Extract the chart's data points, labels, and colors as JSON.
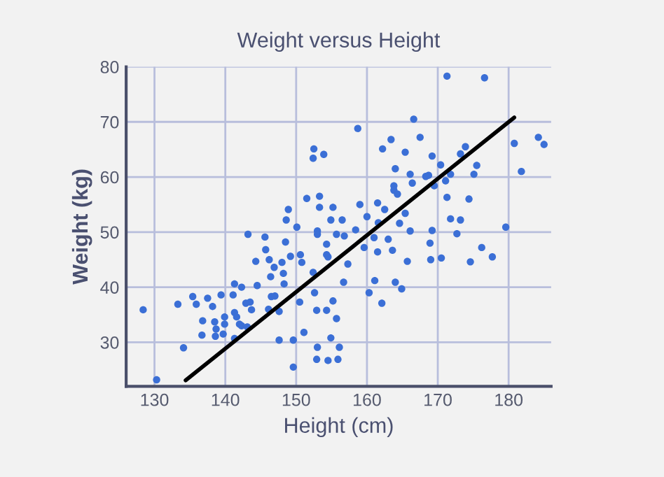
{
  "chart_data": {
    "type": "scatter",
    "title": "Weight versus Height",
    "xlabel": "Height (cm)",
    "ylabel": "Weight (kg)",
    "xlim": [
      126,
      186
    ],
    "ylim": [
      22,
      80
    ],
    "xticks": [
      130,
      140,
      150,
      160,
      170,
      180
    ],
    "yticks": [
      30,
      40,
      50,
      60,
      70,
      80
    ],
    "grid": true,
    "series": [
      {
        "marker": "circle",
        "color": "#3b6fd6",
        "x": [
          128.4,
          130.3,
          134.1,
          133.3,
          135.4,
          135.9,
          137.5,
          138.2,
          136.8,
          136.7,
          138.5,
          138.6,
          139.4,
          138.7,
          139.9,
          139.9,
          139.7,
          141.1,
          141.3,
          141.3,
          141.3,
          141.6,
          142.0,
          142.3,
          142.3,
          142.9,
          143.2,
          143.1,
          143.5,
          143.7,
          144.3,
          144.5,
          145.6,
          145.7,
          146.2,
          146.9,
          146.4,
          146.5,
          146.1,
          147.0,
          147.6,
          148.0,
          148.2,
          148.3,
          148.5,
          148.6,
          148.9,
          147.6,
          149.2,
          149.6,
          149.6,
          150.1,
          150.6,
          150.8,
          150.5,
          151.1,
          151.5,
          152.5,
          152.4,
          153.9,
          153.3,
          153.3,
          155.2,
          154.9,
          156.5,
          153.0,
          153.0,
          155.7,
          156.8,
          154.3,
          154.3,
          154.5,
          152.4,
          157.3,
          156.7,
          152.6,
          152.9,
          154.3,
          155.2,
          155.7,
          154.9,
          153.0,
          156.1,
          152.9,
          154.5,
          155.9,
          158.7,
          159.0,
          158.4,
          160.0,
          161.5,
          162.5,
          161.6,
          159.6,
          161.0,
          161.5,
          163.0,
          163.6,
          160.3,
          161.1,
          162.1,
          162.2,
          163.4,
          164.0,
          165.4,
          166.6,
          167.5,
          163.8,
          163.8,
          164.3,
          166.1,
          166.4,
          165.4,
          164.6,
          166.1,
          165.7,
          164.0,
          164.9,
          168.3,
          168.7,
          169.2,
          169.5,
          170.4,
          171.1,
          171.8,
          171.3,
          171.8,
          173.2,
          172.7,
          169.2,
          168.9,
          169.0,
          170.5,
          171.3,
          176.6,
          173.2,
          173.9,
          175.5,
          175.1,
          174.4,
          176.2,
          174.6,
          177.7,
          179.6,
          180.8,
          181.8,
          184.2,
          185.0
        ],
        "values": [
          35.9,
          23.2,
          29.0,
          36.9,
          38.3,
          36.9,
          38.0,
          36.5,
          33.9,
          31.3,
          33.7,
          31.1,
          38.6,
          32.4,
          34.6,
          33.3,
          31.5,
          38.6,
          40.6,
          35.4,
          30.7,
          34.6,
          33.3,
          40.0,
          33.0,
          37.1,
          49.6,
          32.8,
          37.3,
          35.9,
          44.7,
          40.3,
          49.1,
          46.8,
          45.0,
          43.6,
          41.9,
          38.3,
          36.0,
          38.4,
          30.4,
          44.5,
          42.5,
          40.6,
          48.2,
          52.2,
          54.1,
          35.6,
          45.6,
          30.4,
          25.5,
          50.9,
          45.9,
          44.5,
          37.3,
          31.8,
          56.1,
          65.1,
          63.4,
          64.1,
          56.5,
          54.5,
          54.5,
          52.2,
          52.2,
          50.2,
          49.6,
          49.6,
          49.3,
          47.8,
          45.9,
          45.5,
          42.7,
          44.2,
          40.9,
          39.0,
          35.8,
          35.8,
          37.5,
          34.3,
          30.8,
          29.1,
          29.1,
          26.9,
          26.7,
          26.9,
          68.8,
          55.0,
          50.4,
          52.8,
          55.3,
          54.1,
          51.7,
          47.2,
          49.0,
          46.4,
          48.7,
          46.7,
          39.0,
          41.2,
          37.1,
          65.1,
          66.8,
          61.5,
          64.5,
          70.5,
          67.2,
          58.4,
          57.6,
          56.9,
          60.5,
          58.9,
          53.4,
          51.6,
          50.2,
          44.7,
          40.9,
          39.7,
          60.1,
          60.3,
          63.8,
          58.4,
          62.2,
          59.3,
          60.5,
          56.3,
          52.4,
          52.2,
          49.7,
          50.3,
          48.0,
          45.0,
          45.3,
          78.3,
          78.0,
          64.2,
          65.5,
          62.1,
          60.5,
          56.0,
          47.2,
          44.6,
          45.5,
          50.9,
          66.1,
          61.0,
          67.2,
          65.9
        ]
      },
      {
        "type": "line",
        "color": "#000000",
        "x": [
          134.4,
          180.8
        ],
        "values": [
          23.1,
          70.8
        ]
      }
    ]
  }
}
